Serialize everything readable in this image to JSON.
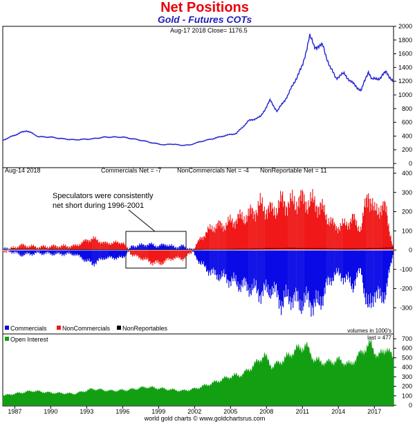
{
  "chart_data": {
    "type": "line",
    "title": "Net Positions",
    "subtitle": "Gold - Futures COTs",
    "x_tick_labels": [
      "1987",
      "1990",
      "1993",
      "1996",
      "1999",
      "2002",
      "2005",
      "2008",
      "2011",
      "2014",
      "2017"
    ],
    "panels": {
      "price": {
        "info": "Aug-17 2018 Close= 1176.5",
        "ylim": [
          0,
          2000
        ],
        "y_ticks": [
          0,
          200,
          400,
          600,
          800,
          1000,
          1200,
          1400,
          1600,
          1800,
          2000
        ],
        "series": [
          {
            "name": "Gold Close",
            "color": "#1f1fd0",
            "x": [
              1986.0,
              1987.5,
              1988.0,
              1989.0,
              1990.0,
              1991.0,
              1992.0,
              1993.5,
              1994.5,
              1996.0,
              1997.5,
              1998.5,
              1999.5,
              2000.0,
              2001.0,
              2001.6,
              2002.5,
              2003.5,
              2004.5,
              2005.5,
              2006.5,
              2007.5,
              2008.3,
              2008.9,
              2009.8,
              2010.5,
              2011.0,
              2011.6,
              2012.0,
              2012.7,
              2013.3,
              2013.8,
              2014.5,
              2015.0,
              2015.9,
              2016.5,
              2016.8,
              2017.5,
              2018.0,
              2018.6
            ],
            "values": [
              340,
              450,
              480,
              390,
              385,
              360,
              345,
              360,
              385,
              385,
              340,
              300,
              270,
              285,
              265,
              270,
              320,
              360,
              405,
              440,
              620,
              680,
              920,
              760,
              1000,
              1250,
              1420,
              1860,
              1700,
              1720,
              1400,
              1250,
              1310,
              1200,
              1060,
              1350,
              1220,
              1250,
              1340,
              1176.5
            ]
          }
        ]
      },
      "cot": {
        "info": "Aug-14 2018",
        "net_labels": [
          "Commercials Net = -7",
          "NonCommercials Net = -4",
          "NonReportable Net = 11"
        ],
        "ylim": [
          -400,
          400
        ],
        "y_ticks": [
          -300,
          -200,
          -100,
          0,
          100,
          200,
          300,
          400
        ],
        "units_note": "volumes in 1000's",
        "annotation": [
          "Speculators were consistently",
          "net short during 1996-2001"
        ],
        "legend": [
          "Commercials",
          "NonCommercials",
          "NonReportables"
        ],
        "series": [
          {
            "name": "Commercials",
            "color": "#0a0ae6",
            "x": [
              1986.0,
              1987.5,
              1989.0,
              1990.5,
              1992.0,
              1993.0,
              1993.5,
              1994.5,
              1996.0,
              1996.8,
              1997.5,
              1998.3,
              1999.0,
              1999.6,
              2000.3,
              2001.0,
              2001.7,
              2002.5,
              2003.5,
              2004.5,
              2005.5,
              2006.5,
              2007.5,
              2008.5,
              2009.3,
              2010.0,
              2010.7,
              2011.5,
              2012.3,
              2013.0,
              2013.7,
              2014.5,
              2015.2,
              2015.9,
              2016.5,
              2017.0,
              2017.5,
              2018.0,
              2018.6
            ],
            "values": [
              10,
              -25,
              -15,
              -20,
              -20,
              -55,
              -70,
              -40,
              -40,
              20,
              25,
              30,
              20,
              30,
              15,
              20,
              5,
              -70,
              -120,
              -140,
              -170,
              -190,
              -220,
              -200,
              -270,
              -240,
              -270,
              -260,
              -290,
              -190,
              -120,
              -140,
              -180,
              -100,
              -330,
              -210,
              -260,
              -200,
              -7
            ]
          },
          {
            "name": "NonCommercials",
            "color": "#f01818",
            "x": [
              1986.0,
              1987.5,
              1989.0,
              1990.5,
              1992.0,
              1993.0,
              1993.5,
              1994.5,
              1996.0,
              1996.8,
              1997.5,
              1998.3,
              1999.0,
              1999.6,
              2000.3,
              2001.0,
              2001.7,
              2002.5,
              2003.5,
              2004.5,
              2005.5,
              2006.5,
              2007.5,
              2008.5,
              2009.3,
              2010.0,
              2010.7,
              2011.5,
              2012.3,
              2013.0,
              2013.7,
              2014.5,
              2015.2,
              2015.9,
              2016.5,
              2017.0,
              2017.5,
              2018.0,
              2018.6
            ],
            "values": [
              -10,
              25,
              15,
              20,
              20,
              50,
              60,
              35,
              40,
              -25,
              -40,
              -60,
              -70,
              -55,
              -40,
              -45,
              -15,
              60,
              120,
              130,
              160,
              180,
              230,
              200,
              250,
              240,
              260,
              250,
              240,
              180,
              120,
              130,
              160,
              110,
              310,
              190,
              230,
              200,
              -4
            ]
          },
          {
            "name": "NonReportables",
            "color": "#000000",
            "x": [
              1986.0,
              1990.0,
              1995.0,
              2000.0,
              2005.0,
              2010.0,
              2015.0,
              2018.6
            ],
            "values": [
              5,
              3,
              2,
              2,
              4,
              10,
              6,
              11
            ]
          }
        ]
      },
      "open_interest": {
        "label": "Open Interest",
        "last": "last = 477",
        "ylim": [
          0,
          700
        ],
        "y_ticks": [
          0,
          100,
          200,
          300,
          400,
          500,
          600,
          700
        ],
        "series": [
          {
            "name": "Open Interest",
            "color": "#12a012",
            "x": [
              1986.0,
              1987.0,
              1988.5,
              1990.0,
              1992.0,
              1993.5,
              1995.0,
              1996.5,
              1998.0,
              1999.5,
              2001.0,
              2002.0,
              2003.5,
              2005.0,
              2006.0,
              2007.0,
              2007.8,
              2008.5,
              2009.5,
              2010.5,
              2011.3,
              2012.0,
              2013.0,
              2014.0,
              2015.0,
              2016.0,
              2016.7,
              2017.3,
              2018.0,
              2018.6
            ],
            "values": [
              100,
              120,
              150,
              130,
              120,
              170,
              150,
              160,
              190,
              170,
              150,
              170,
              230,
              300,
              320,
              420,
              520,
              400,
              480,
              580,
              620,
              470,
              440,
              470,
              420,
              560,
              640,
              500,
              600,
              477
            ]
          }
        ]
      }
    }
  },
  "credit": "world gold charts © www.goldchartsrus.com"
}
